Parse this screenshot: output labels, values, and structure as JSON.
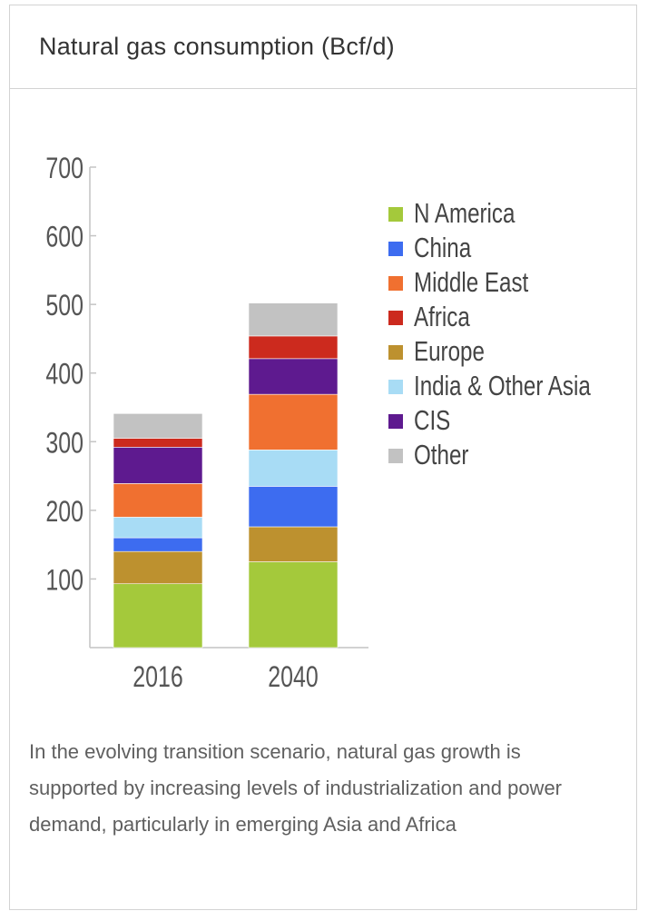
{
  "header": {
    "title": "Natural gas consumption (Bcf/d)"
  },
  "chart_data": {
    "type": "bar",
    "stacked": true,
    "title": "Natural gas consumption (Bcf/d)",
    "xlabel": "",
    "ylabel": "",
    "ylim": [
      0,
      700
    ],
    "yticks": [
      100,
      200,
      300,
      400,
      500,
      600,
      700
    ],
    "categories": [
      "2016",
      "2040"
    ],
    "legend_position": "right",
    "grid": false,
    "series": [
      {
        "name": "N America",
        "color": "#a4c93b",
        "values": [
          93,
          125
        ]
      },
      {
        "name": "Europe",
        "color": "#bd912f",
        "values": [
          47,
          51
        ]
      },
      {
        "name": "China",
        "color": "#3d6cf0",
        "values": [
          20,
          59
        ]
      },
      {
        "name": "India & Other Asia",
        "color": "#a8dcf5",
        "values": [
          30,
          53
        ]
      },
      {
        "name": "Middle East",
        "color": "#f07030",
        "values": [
          49,
          81
        ]
      },
      {
        "name": "CIS",
        "color": "#5e1a8f",
        "values": [
          53,
          52
        ]
      },
      {
        "name": "Africa",
        "color": "#cc2a1e",
        "values": [
          13,
          33
        ]
      },
      {
        "name": "Other",
        "color": "#c2c2c2",
        "values": [
          36,
          48
        ]
      }
    ],
    "legend_order": [
      "N America",
      "China",
      "Middle East",
      "Africa",
      "Europe",
      "India & Other Asia",
      "CIS",
      "Other"
    ]
  },
  "caption": "In the evolving transition scenario, natural gas growth is supported by increasing levels of industrialization and power demand, particularly in emerging Asia and Africa"
}
